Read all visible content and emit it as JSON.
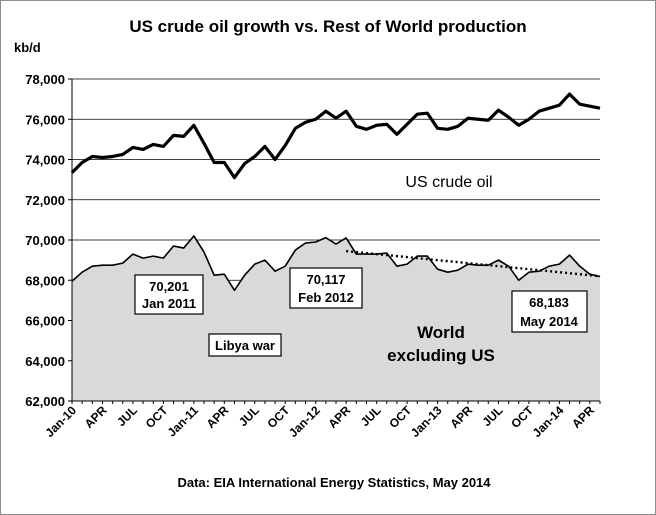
{
  "chart_data": {
    "type": "line",
    "title": "US crude oil growth vs. Rest of World production",
    "ylabel": "kb/d",
    "ylim": [
      62000,
      78000
    ],
    "yticks": [
      62000,
      64000,
      66000,
      68000,
      70000,
      72000,
      74000,
      76000,
      78000
    ],
    "ytick_labels": [
      "62,000",
      "64,000",
      "66,000",
      "68,000",
      "70,000",
      "72,000",
      "74,000",
      "76,000",
      "78,000"
    ],
    "grid": "horizontal",
    "xtick_labels": [
      "Jan-10",
      "APR",
      "JUL",
      "OCT",
      "Jan-11",
      "APR",
      "JUL",
      "OCT",
      "Jan-12",
      "APR",
      "JUL",
      "OCT",
      "Jan-13",
      "APR",
      "JUL",
      "OCT",
      "Jan-14",
      "APR"
    ],
    "series": [
      {
        "name": "US crude oil",
        "style": "line",
        "color": "#000000",
        "values": [
          73350,
          73850,
          74150,
          74100,
          74150,
          74250,
          74600,
          74500,
          74750,
          74650,
          75200,
          75150,
          75700,
          74800,
          73850,
          73850,
          73100,
          73800,
          74150,
          74650,
          74000,
          74700,
          75550,
          75850,
          76000,
          76400,
          76050,
          76400,
          75650,
          75500,
          75700,
          75750,
          75250,
          75750,
          76250,
          76300,
          75550,
          75500,
          75650,
          76050,
          76000,
          75950,
          76450,
          76100,
          75700,
          76000,
          76400,
          76550,
          76700,
          77250,
          76750,
          76650,
          76550
        ]
      },
      {
        "name": "World excluding US",
        "style": "area",
        "color": "#d9d9d9",
        "values": [
          67950,
          68400,
          68700,
          68750,
          68750,
          68850,
          69300,
          69100,
          69200,
          69100,
          69700,
          69600,
          70201,
          69400,
          68250,
          68300,
          67500,
          68250,
          68800,
          69000,
          68450,
          68700,
          69500,
          69850,
          69900,
          70117,
          69800,
          70100,
          69300,
          69300,
          69300,
          69350,
          68700,
          68800,
          69200,
          69200,
          68550,
          68400,
          68500,
          68800,
          68750,
          68750,
          69000,
          68700,
          68000,
          68400,
          68450,
          68700,
          68800,
          69250,
          68700,
          68300,
          68183
        ]
      }
    ],
    "trendline": {
      "style": "dotted",
      "from_index": 27,
      "from_value": 69450,
      "to_index": 52,
      "to_value": 68200
    },
    "series_labels": {
      "us": "US crude oil",
      "world_line1": "World",
      "world_line2": "excluding US"
    },
    "annotations": [
      {
        "line1": "70,201",
        "line2": "Jan 2011"
      },
      {
        "line1": "70,117",
        "line2": "Feb 2012"
      },
      {
        "line1": "68,183",
        "line2": "May 2014"
      },
      {
        "line1": "Libya war",
        "line2": ""
      }
    ],
    "source": "Data: EIA International Energy Statistics, May 2014"
  }
}
